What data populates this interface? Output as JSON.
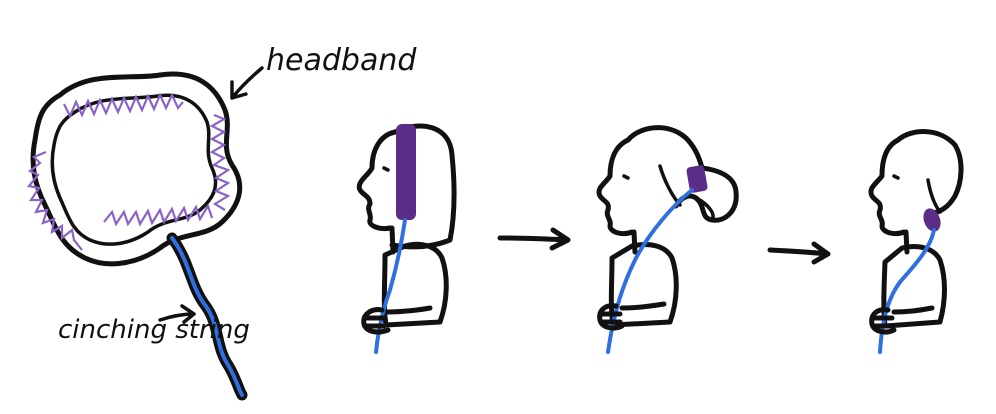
{
  "labels": {
    "headband": "headband",
    "cinching_string": "cinching string"
  },
  "colors": {
    "ink": "#111111",
    "headband_purple": "#5b2d86",
    "zigzag_purple": "#8a63c7",
    "string_blue": "#2f6fe0",
    "background": "#ffffff"
  },
  "icons": {
    "arrow": "right-arrow",
    "label_pointer": "curved-arrow"
  }
}
